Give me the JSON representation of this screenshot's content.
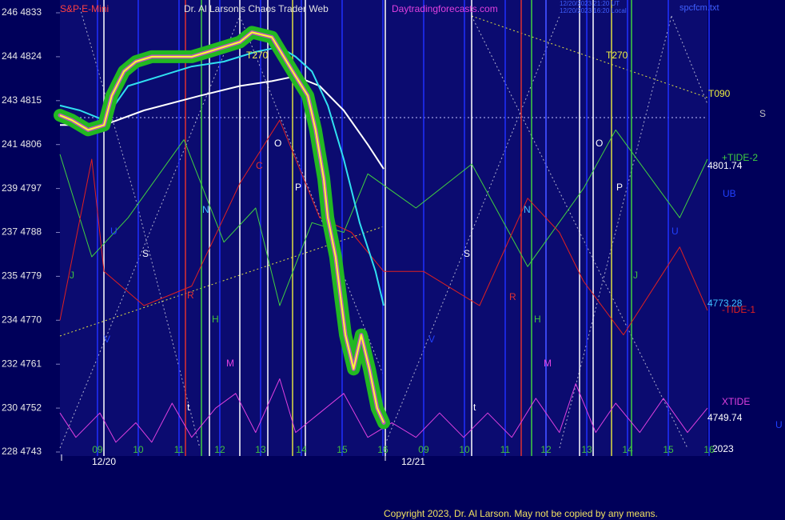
{
  "chart_data": {
    "type": "line",
    "symbol": "S&P E-Mini",
    "title": "Dr. Al Larson's Chaos Trader Web",
    "site": "Daytradingforecasts.com",
    "timestamps": [
      "12/20/2023 21:20 UT",
      "12/20/2023 16:20 Local"
    ],
    "file": "spcfcm.txt",
    "copyright": "Copyright 2023, Dr. Al Larson. May not be copied by any means.",
    "ylim": [
      4743,
      4833
    ],
    "yticks": [
      {
        "value": 4833,
        "label": "246 4833"
      },
      {
        "value": 4824,
        "label": "244 4824"
      },
      {
        "value": 4815,
        "label": "243 4815"
      },
      {
        "value": 4806,
        "label": "241 4806"
      },
      {
        "value": 4797,
        "label": "239 4797"
      },
      {
        "value": 4788,
        "label": "237 4788"
      },
      {
        "value": 4779,
        "label": "235 4779"
      },
      {
        "value": 4770,
        "label": "234 4770"
      },
      {
        "value": 4761,
        "label": "232 4761"
      },
      {
        "value": 4752,
        "label": "230 4752"
      },
      {
        "value": 4743,
        "label": "228 4743"
      }
    ],
    "xlim": [
      0.08,
      15.96
    ],
    "xticks": [
      {
        "value": 1,
        "label": "09"
      },
      {
        "value": 2,
        "label": "10"
      },
      {
        "value": 3,
        "label": "11"
      },
      {
        "value": 4,
        "label": "12"
      },
      {
        "value": 5,
        "label": "13"
      },
      {
        "value": 6,
        "label": "14"
      },
      {
        "value": 7,
        "label": "15"
      },
      {
        "value": 8,
        "label": "16"
      },
      {
        "value": 9,
        "label": "09"
      },
      {
        "value": 10,
        "label": "10"
      },
      {
        "value": 11,
        "label": "11"
      },
      {
        "value": 12,
        "label": "12"
      },
      {
        "value": 13,
        "label": "13"
      },
      {
        "value": 14,
        "label": "14"
      },
      {
        "value": 15,
        "label": "15"
      },
      {
        "value": 16,
        "label": "16"
      }
    ],
    "dates": [
      "12/20",
      "12/21"
    ],
    "year": "2023",
    "annotations": [
      "T270",
      "T270",
      "T090",
      "S",
      "O",
      "C",
      "P",
      "N",
      "S",
      "J",
      "R",
      "H",
      "M",
      "t",
      "V",
      "U",
      "O",
      "P",
      "N",
      "S",
      "J",
      "R",
      "H",
      "M",
      "t",
      "V",
      "U",
      "UB",
      "U"
    ],
    "series": [
      {
        "name": "+TIDE-2",
        "color": "#40d040",
        "end_label": "4801.74",
        "x": [
          0.08,
          0.86,
          1.75,
          3.12,
          4.1,
          4.88,
          5.47,
          6.26,
          7.04,
          7.63,
          8.81,
          10.18,
          11.55,
          12.92,
          13.71,
          15.28,
          15.96
        ],
        "values": [
          4804,
          4783,
          4791,
          4807,
          4786,
          4793,
          4773,
          4790,
          4788,
          4800,
          4793,
          4802,
          4781,
          4797,
          4809,
          4791,
          4803
        ]
      },
      {
        "name": "-TIDE-1",
        "color": "#e02020",
        "end_label": "4773.28",
        "x": [
          0.08,
          0.86,
          1.16,
          2.14,
          3.31,
          4.49,
          5.47,
          6.45,
          7.23,
          8.02,
          9.0,
          10.37,
          11.55,
          12.33,
          12.92,
          13.9,
          15.28,
          15.96
        ],
        "values": [
          4770,
          4803,
          4780,
          4773,
          4777,
          4798,
          4811,
          4791,
          4788,
          4780,
          4780,
          4773,
          4795,
          4788,
          4778,
          4767,
          4785,
          4772
        ]
      },
      {
        "name": "XTIDE",
        "color": "#e040e0",
        "end_label": "4749.74",
        "x": [
          0.08,
          0.47,
          1.06,
          1.45,
          1.94,
          2.33,
          2.83,
          3.31,
          3.9,
          4.39,
          4.88,
          5.47,
          5.86,
          6.45,
          7.04,
          7.63,
          8.22,
          8.81,
          9.39,
          9.98,
          10.57,
          11.16,
          11.75,
          12.33,
          12.73,
          13.22,
          13.71,
          14.3,
          14.88,
          15.47,
          15.96
        ],
        "values": [
          4751,
          4746,
          4751,
          4745,
          4749,
          4745,
          4753,
          4746,
          4752,
          4755,
          4747,
          4758,
          4747,
          4751,
          4755,
          4746,
          4749,
          4746,
          4751,
          4746,
          4751,
          4746,
          4754,
          4747,
          4757,
          4747,
          4753,
          4747,
          4754,
          4747,
          4752
        ]
      },
      {
        "color": "#ffffff",
        "x": [
          0.08,
          1.16,
          2.14,
          3.51,
          4.49,
          5.28,
          5.86,
          6.45,
          7.04,
          7.63,
          8.02
        ],
        "values": [
          4810,
          4810,
          4813,
          4816,
          4818,
          4819,
          4820,
          4818,
          4813,
          4806,
          4801
        ]
      },
      {
        "color": "#30e0f0",
        "x": [
          0.08,
          0.57,
          1.16,
          1.75,
          2.53,
          3.31,
          4.1,
          4.88,
          5.47,
          5.86,
          6.26,
          6.65,
          7.04,
          7.43,
          7.82,
          8.02
        ],
        "values": [
          4814,
          4813,
          4811,
          4818,
          4820,
          4822,
          4823,
          4825,
          4826,
          4824,
          4821,
          4814,
          4803,
          4790,
          4780,
          4773
        ]
      },
      {
        "color": "#ffff30",
        "highlight_color": "#22b822",
        "x": [
          0.08,
          0.37,
          0.77,
          1.16,
          1.35,
          1.65,
          1.94,
          2.33,
          2.73,
          3.31,
          3.71,
          4.1,
          4.49,
          4.79,
          5.28,
          5.57,
          5.86,
          6.16,
          6.35,
          6.55,
          6.65,
          6.84,
          6.96,
          7.08,
          7.28,
          7.47,
          7.67,
          7.86,
          8.02
        ],
        "values": [
          4812,
          4811,
          4809,
          4810,
          4816,
          4821,
          4823,
          4824,
          4824,
          4824,
          4825,
          4826,
          4827,
          4829,
          4828,
          4824,
          4820,
          4816,
          4809,
          4799,
          4791,
          4783,
          4775,
          4767,
          4760,
          4767,
          4760,
          4752,
          4749
        ]
      }
    ]
  }
}
